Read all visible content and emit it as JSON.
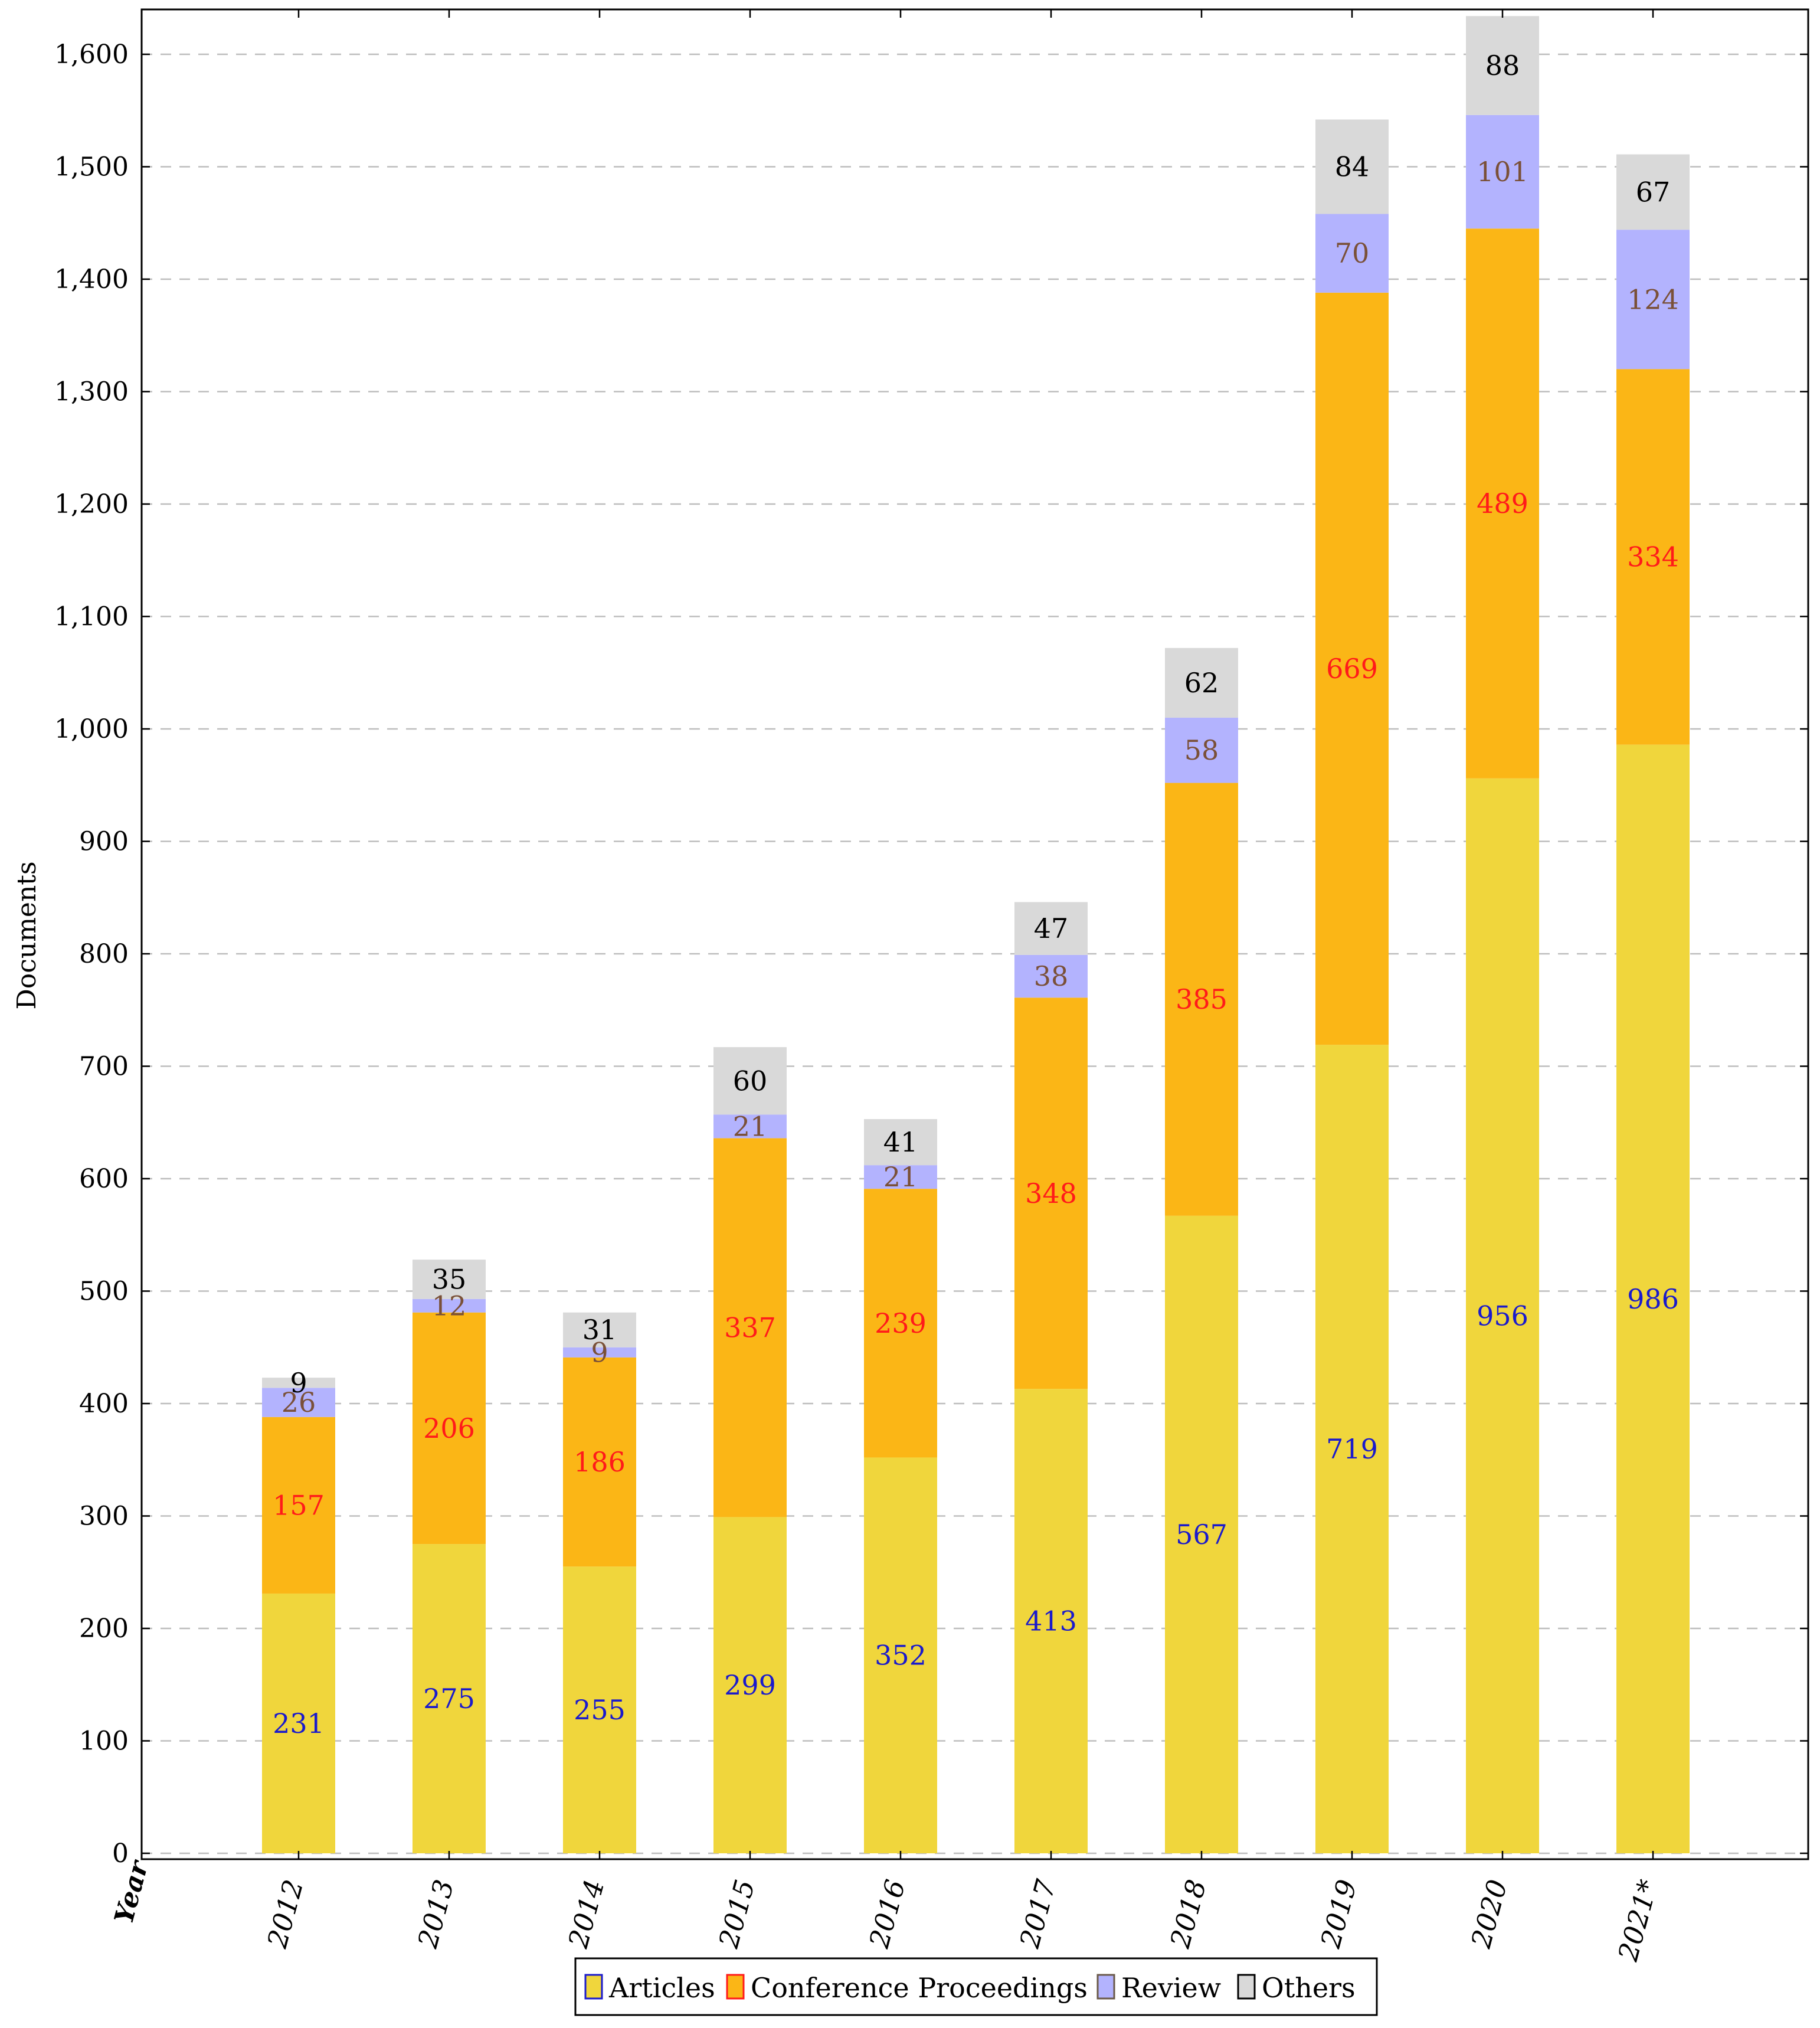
{
  "chart_data": {
    "type": "bar",
    "stacked": true,
    "title": "",
    "xlabel": "Year",
    "ylabel": "Documents",
    "ylim": [
      0,
      1640
    ],
    "yticks": [
      0,
      100,
      200,
      300,
      400,
      500,
      600,
      700,
      800,
      900,
      1000,
      1100,
      1200,
      1300,
      1400,
      1500,
      1600
    ],
    "ytick_labels": [
      "0",
      "100",
      "200",
      "300",
      "400",
      "500",
      "600",
      "700",
      "800",
      "900",
      "1,000",
      "1,100",
      "1,200",
      "1,300",
      "1,400",
      "1,500",
      "1,600"
    ],
    "grid": "horizontal dashed",
    "legend_position": "bottom-center",
    "categories": [
      "2012",
      "2013",
      "2014",
      "2015",
      "2016",
      "2017",
      "2018",
      "2019",
      "2020",
      "2021*"
    ],
    "series": [
      {
        "name": "Articles",
        "color": "#f0d63c",
        "label_color": "#1a1acc",
        "border_color": "#1a1acc",
        "values": [
          231,
          275,
          255,
          299,
          352,
          413,
          567,
          719,
          956,
          986
        ]
      },
      {
        "name": "Conference Proceedings",
        "color": "#fbb616",
        "label_color": "#ff1a1a",
        "border_color": "#ff1a1a",
        "values": [
          157,
          206,
          186,
          337,
          239,
          348,
          385,
          669,
          489,
          334
        ]
      },
      {
        "name": "Review",
        "color": "#b3b3fe",
        "label_color": "#7a5038",
        "border_color": "#6b5a4a",
        "values": [
          26,
          12,
          9,
          21,
          21,
          38,
          58,
          70,
          101,
          124
        ]
      },
      {
        "name": "Others",
        "color": "#d9d9d9",
        "label_color": "#000000",
        "border_color": "#000000",
        "values": [
          9,
          35,
          31,
          60,
          41,
          47,
          62,
          84,
          88,
          67
        ]
      }
    ]
  }
}
